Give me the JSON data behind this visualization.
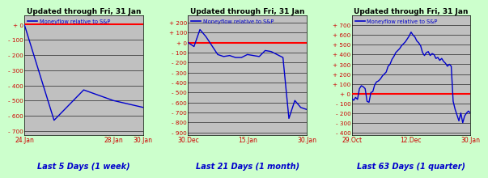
{
  "title": "Updated through Fri, 31 Jan",
  "legend_label": "Moneyflow relative to S&P",
  "bg_color": "#c0c0c0",
  "outer_bg": "#ccffcc",
  "line_color": "#0000cc",
  "zero_line_color": "#ff0000",
  "title_color": "#000000",
  "label_color": "#cc0000",
  "bottom_label_color": "#0000cc",
  "chart1": {
    "yticks": [
      0,
      -100,
      -200,
      -300,
      -400,
      -500,
      -600,
      -700
    ],
    "ylim": [
      -730,
      60
    ],
    "xtick_labels": [
      "24.Jan",
      "28.Jan",
      "30.Jan"
    ],
    "xtick_pos": [
      0,
      3,
      4
    ],
    "bottom_label": "Last 5 Days (1 week)",
    "data_x": [
      0,
      1,
      2,
      3,
      4
    ],
    "data_y": [
      0,
      -630,
      -430,
      -500,
      -545
    ]
  },
  "chart2": {
    "yticks": [
      200,
      100,
      0,
      -100,
      -200,
      -300,
      -400,
      -500,
      -600,
      -700,
      -800,
      -900
    ],
    "ylim": [
      -930,
      270
    ],
    "xtick_labels": [
      "30.Dec",
      "15.Jan",
      "30.Jan"
    ],
    "xtick_pos": [
      0,
      10,
      20
    ],
    "bottom_label": "Last 21 Days (1 month)",
    "data_x": [
      0,
      1,
      2,
      3,
      4,
      5,
      6,
      7,
      8,
      9,
      10,
      11,
      12,
      13,
      14,
      15,
      16,
      17,
      18,
      19,
      20
    ],
    "data_y": [
      0,
      -40,
      130,
      60,
      -30,
      -120,
      -140,
      -130,
      -150,
      -150,
      -120,
      -130,
      -140,
      -80,
      -90,
      -120,
      -150,
      -760,
      -580,
      -650,
      -670
    ]
  },
  "chart3": {
    "yticks": [
      700,
      600,
      500,
      400,
      300,
      200,
      100,
      0,
      -100,
      -200,
      -300,
      -400
    ],
    "ylim": [
      -430,
      800
    ],
    "xtick_labels": [
      "29.Oct",
      "12.Dec",
      "30.Jan"
    ],
    "xtick_pos": [
      0,
      31,
      62
    ],
    "bottom_label": "Last 63 Days (1 quarter)",
    "data_x": [
      0,
      1,
      2,
      3,
      4,
      5,
      6,
      7,
      8,
      9,
      10,
      11,
      12,
      13,
      14,
      15,
      16,
      17,
      18,
      19,
      20,
      21,
      22,
      23,
      24,
      25,
      26,
      27,
      28,
      29,
      30,
      31,
      32,
      33,
      34,
      35,
      36,
      37,
      38,
      39,
      40,
      41,
      42,
      43,
      44,
      45,
      46,
      47,
      48,
      49,
      50,
      51,
      52,
      53,
      54,
      55,
      56,
      57,
      58,
      59,
      60,
      61,
      62
    ],
    "data_y": [
      -50,
      -70,
      -40,
      -60,
      50,
      80,
      70,
      50,
      -80,
      -90,
      10,
      20,
      90,
      120,
      130,
      150,
      180,
      200,
      220,
      280,
      300,
      350,
      380,
      420,
      440,
      460,
      490,
      510,
      530,
      560,
      590,
      630,
      600,
      580,
      540,
      520,
      490,
      420,
      390,
      420,
      430,
      390,
      410,
      400,
      360,
      370,
      340,
      360,
      330,
      310,
      280,
      300,
      280,
      -80,
      -160,
      -220,
      -280,
      -200,
      -300,
      -230,
      -200,
      -180,
      -200
    ]
  }
}
